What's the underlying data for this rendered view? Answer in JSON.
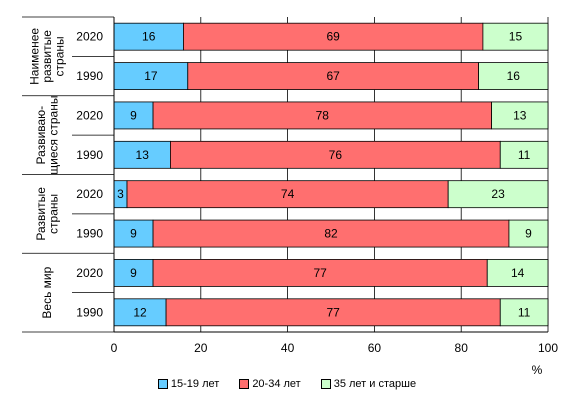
{
  "chart_data": {
    "type": "bar",
    "orientation": "horizontal",
    "stacked": true,
    "groups": [
      {
        "label": [
          "Наименее",
          "развитые",
          "страны"
        ],
        "rows": [
          {
            "year": "2020",
            "values": [
              16,
              69,
              15
            ]
          },
          {
            "year": "1990",
            "values": [
              17,
              67,
              16
            ]
          }
        ]
      },
      {
        "label": [
          "Развиваю-",
          "щиеся страны"
        ],
        "rows": [
          {
            "year": "2020",
            "values": [
              9,
              78,
              13
            ]
          },
          {
            "year": "1990",
            "values": [
              13,
              76,
              11
            ]
          }
        ]
      },
      {
        "label": [
          "Развитые",
          "страны"
        ],
        "rows": [
          {
            "year": "2020",
            "values": [
              3,
              74,
              23
            ]
          },
          {
            "year": "1990",
            "values": [
              9,
              82,
              9
            ]
          }
        ]
      },
      {
        "label": [
          "Весь мир"
        ],
        "rows": [
          {
            "year": "2020",
            "values": [
              9,
              77,
              14
            ]
          },
          {
            "year": "1990",
            "values": [
              12,
              77,
              11
            ]
          }
        ]
      }
    ],
    "series": [
      {
        "name": "15-19 лет",
        "color": "#66ccff"
      },
      {
        "name": "20-34 лет",
        "color": "#ff6f6f"
      },
      {
        "name": "35 лет и старше",
        "color": "#ccffcc"
      }
    ],
    "xlim": [
      0,
      100
    ],
    "xticks": [
      "0",
      "20",
      "40",
      "60",
      "80",
      "100"
    ],
    "xlabel": "%",
    "grid": true,
    "legend_position": "bottom"
  }
}
